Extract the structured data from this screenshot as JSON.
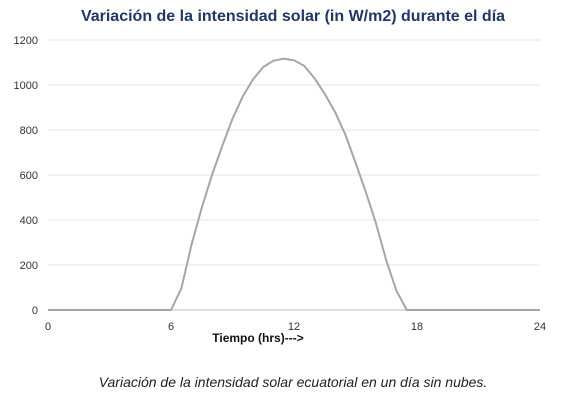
{
  "chart_data": {
    "type": "line",
    "title": "Variación de la intensidad solar (in W/m2) durante el día",
    "xlabel": "Tiempo  (hrs)--->",
    "ylabel": "",
    "xlim": [
      0,
      24
    ],
    "ylim": [
      0,
      1200
    ],
    "xticks": [
      "0",
      "6",
      "12",
      "18",
      "24"
    ],
    "yticks": [
      "0",
      "200",
      "400",
      "600",
      "800",
      "1000",
      "1200"
    ],
    "grid": "horizontal",
    "line_color": "#a6a6a6",
    "series": [
      {
        "x": [
          0,
          6,
          6.5,
          7,
          7.5,
          8,
          8.5,
          9,
          9.5,
          10,
          10.5,
          11,
          11.5,
          12,
          12.5,
          13,
          13.5,
          14,
          14.5,
          15,
          15.5,
          16,
          16.5,
          17,
          17.5,
          18,
          24
        ],
        "y": [
          0,
          0,
          95,
          290,
          455,
          600,
          730,
          850,
          950,
          1025,
          1080,
          1108,
          1117,
          1110,
          1085,
          1030,
          960,
          880,
          780,
          655,
          525,
          385,
          220,
          85,
          0,
          0,
          0
        ]
      }
    ]
  },
  "caption": "Variación de la intensidad solar ecuatorial en un día sin nubes."
}
